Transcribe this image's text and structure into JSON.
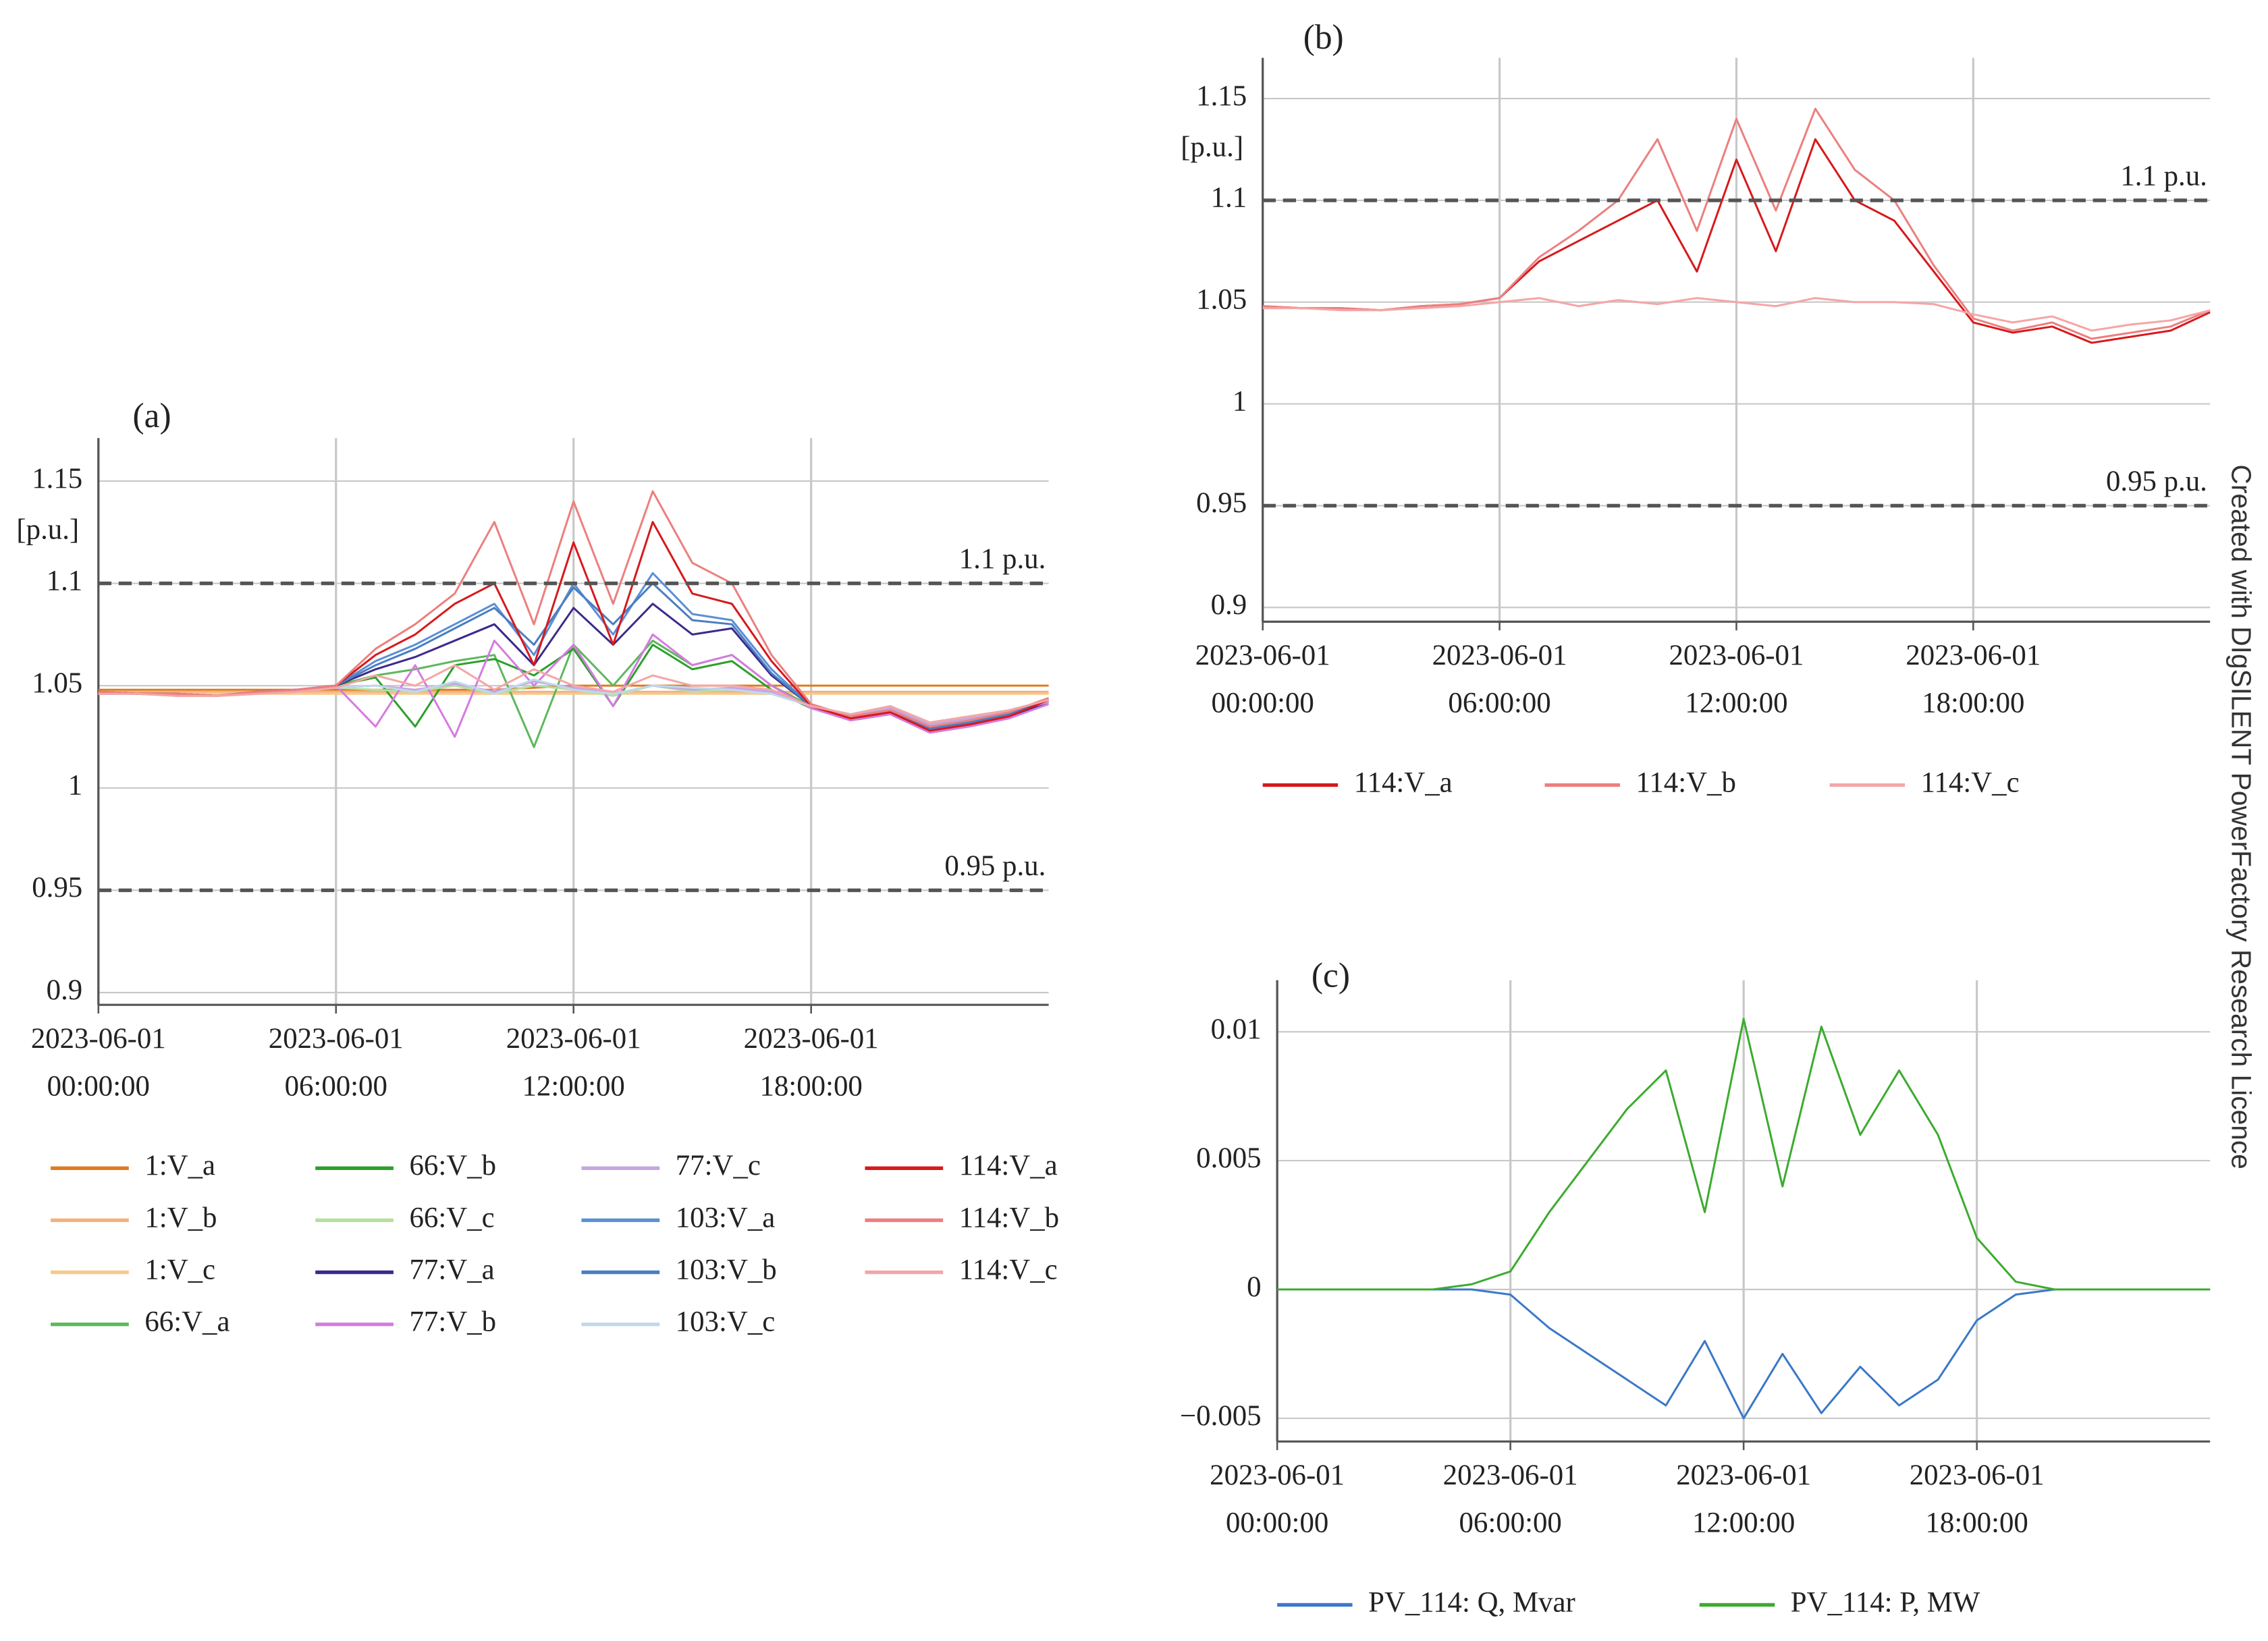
{
  "watermark": "Created with DIgSILENT PowerFactory Research Licence",
  "chart_data": [
    {
      "type": "line",
      "title": "(a)",
      "y_label": "[p.u.]",
      "x": [
        0,
        1,
        2,
        3,
        4,
        5,
        6,
        7,
        8,
        9,
        10,
        11,
        12,
        13,
        14,
        15,
        16,
        17,
        18,
        19,
        20,
        21,
        22,
        23,
        24
      ],
      "xlim": [
        0,
        24
      ],
      "xticks": [
        {
          "value": 0,
          "label": "2023-06-01 00:00:00"
        },
        {
          "value": 6,
          "label": "2023-06-01 06:00:00"
        },
        {
          "value": 12,
          "label": "2023-06-01 12:00:00"
        },
        {
          "value": 18,
          "label": "2023-06-01 18:00:00"
        }
      ],
      "ylim": [
        0.894,
        1.171
      ],
      "yticks": [
        0.9,
        0.95,
        1,
        1.05,
        1.1,
        1.15
      ],
      "grid": true,
      "hlines": [
        {
          "value": 1.1,
          "label": "1.1 p.u."
        },
        {
          "value": 0.95,
          "label": "0.95 p.u."
        }
      ],
      "series": [
        {
          "name": "1:V_a",
          "color": "#e07b1f",
          "values": [
            1.048,
            1.048,
            1.048,
            1.048,
            1.048,
            1.048,
            1.048,
            1.048,
            1.048,
            1.048,
            1.048,
            1.049,
            1.05,
            1.05,
            1.05,
            1.05,
            1.05,
            1.05,
            1.05,
            1.05,
            1.05,
            1.05,
            1.05,
            1.05,
            1.05
          ]
        },
        {
          "name": "1:V_b",
          "color": "#f5b07a",
          "values": [
            1.047,
            1.047,
            1.047,
            1.047,
            1.047,
            1.047,
            1.047,
            1.047,
            1.047,
            1.047,
            1.047,
            1.047,
            1.047,
            1.047,
            1.047,
            1.047,
            1.047,
            1.047,
            1.047,
            1.047,
            1.047,
            1.047,
            1.047,
            1.047,
            1.047
          ]
        },
        {
          "name": "1:V_c",
          "color": "#f8c98a",
          "values": [
            1.046,
            1.046,
            1.046,
            1.046,
            1.046,
            1.046,
            1.046,
            1.046,
            1.046,
            1.046,
            1.046,
            1.046,
            1.046,
            1.046,
            1.046,
            1.046,
            1.046,
            1.046,
            1.046,
            1.046,
            1.046,
            1.046,
            1.046,
            1.046,
            1.046
          ]
        },
        {
          "name": "66:V_a",
          "color": "#5cb85c",
          "values": [
            1.047,
            1.046,
            1.046,
            1.045,
            1.047,
            1.048,
            1.05,
            1.055,
            1.058,
            1.062,
            1.065,
            1.02,
            1.07,
            1.05,
            1.072,
            1.06,
            1.065,
            1.05,
            1.04,
            1.035,
            1.038,
            1.03,
            1.033,
            1.037,
            1.043
          ]
        },
        {
          "name": "66:V_b",
          "color": "#2ca02c",
          "values": [
            1.047,
            1.046,
            1.046,
            1.045,
            1.047,
            1.048,
            1.05,
            1.054,
            1.03,
            1.06,
            1.063,
            1.055,
            1.068,
            1.04,
            1.07,
            1.058,
            1.062,
            1.048,
            1.039,
            1.034,
            1.037,
            1.029,
            1.032,
            1.036,
            1.042
          ]
        },
        {
          "name": "66:V_c",
          "color": "#b5e0a0",
          "values": [
            1.046,
            1.046,
            1.045,
            1.045,
            1.046,
            1.047,
            1.049,
            1.048,
            1.047,
            1.05,
            1.046,
            1.05,
            1.048,
            1.045,
            1.05,
            1.047,
            1.048,
            1.046,
            1.04,
            1.036,
            1.04,
            1.032,
            1.035,
            1.038,
            1.043
          ]
        },
        {
          "name": "77:V_a",
          "color": "#3b2a8c",
          "values": [
            1.047,
            1.046,
            1.046,
            1.045,
            1.047,
            1.048,
            1.05,
            1.058,
            1.064,
            1.072,
            1.08,
            1.06,
            1.088,
            1.07,
            1.09,
            1.075,
            1.078,
            1.055,
            1.04,
            1.034,
            1.037,
            1.028,
            1.031,
            1.035,
            1.042
          ]
        },
        {
          "name": "77:V_b",
          "color": "#d57be0",
          "values": [
            1.047,
            1.046,
            1.046,
            1.045,
            1.047,
            1.048,
            1.05,
            1.03,
            1.06,
            1.025,
            1.072,
            1.05,
            1.07,
            1.04,
            1.075,
            1.06,
            1.065,
            1.05,
            1.039,
            1.033,
            1.036,
            1.027,
            1.03,
            1.034,
            1.041
          ]
        },
        {
          "name": "77:V_c",
          "color": "#c5a5e0",
          "values": [
            1.046,
            1.046,
            1.045,
            1.045,
            1.046,
            1.047,
            1.049,
            1.05,
            1.048,
            1.051,
            1.047,
            1.052,
            1.049,
            1.046,
            1.05,
            1.048,
            1.049,
            1.047,
            1.04,
            1.035,
            1.039,
            1.031,
            1.034,
            1.037,
            1.042
          ]
        },
        {
          "name": "103:V_a",
          "color": "#5b8fd6",
          "values": [
            1.047,
            1.046,
            1.046,
            1.045,
            1.047,
            1.048,
            1.05,
            1.062,
            1.07,
            1.08,
            1.09,
            1.065,
            1.1,
            1.075,
            1.105,
            1.085,
            1.082,
            1.058,
            1.04,
            1.034,
            1.037,
            1.029,
            1.032,
            1.036,
            1.043
          ]
        },
        {
          "name": "103:V_b",
          "color": "#4a7ec0",
          "values": [
            1.047,
            1.046,
            1.046,
            1.045,
            1.047,
            1.048,
            1.05,
            1.06,
            1.068,
            1.078,
            1.088,
            1.07,
            1.098,
            1.08,
            1.1,
            1.082,
            1.08,
            1.056,
            1.04,
            1.034,
            1.037,
            1.029,
            1.032,
            1.036,
            1.043
          ]
        },
        {
          "name": "103:V_c",
          "color": "#c0d8ee",
          "values": [
            1.046,
            1.046,
            1.045,
            1.045,
            1.046,
            1.047,
            1.049,
            1.05,
            1.047,
            1.052,
            1.046,
            1.053,
            1.048,
            1.046,
            1.05,
            1.049,
            1.048,
            1.046,
            1.04,
            1.036,
            1.04,
            1.032,
            1.035,
            1.038,
            1.043
          ]
        },
        {
          "name": "114:V_a",
          "color": "#d7191c",
          "values": [
            1.047,
            1.046,
            1.046,
            1.045,
            1.047,
            1.048,
            1.05,
            1.065,
            1.075,
            1.09,
            1.1,
            1.06,
            1.12,
            1.07,
            1.13,
            1.095,
            1.09,
            1.062,
            1.04,
            1.034,
            1.037,
            1.028,
            1.031,
            1.035,
            1.043
          ]
        },
        {
          "name": "114:V_b",
          "color": "#ec7f7f",
          "values": [
            1.047,
            1.046,
            1.046,
            1.045,
            1.047,
            1.048,
            1.05,
            1.068,
            1.08,
            1.095,
            1.13,
            1.08,
            1.14,
            1.09,
            1.145,
            1.11,
            1.1,
            1.065,
            1.041,
            1.035,
            1.038,
            1.03,
            1.033,
            1.037,
            1.044
          ]
        },
        {
          "name": "114:V_c",
          "color": "#f4a6a6",
          "values": [
            1.046,
            1.046,
            1.045,
            1.045,
            1.046,
            1.047,
            1.049,
            1.055,
            1.05,
            1.06,
            1.048,
            1.058,
            1.05,
            1.047,
            1.055,
            1.05,
            1.05,
            1.048,
            1.04,
            1.036,
            1.04,
            1.032,
            1.035,
            1.038,
            1.043
          ]
        }
      ]
    },
    {
      "type": "line",
      "title": "(b)",
      "y_label": "[p.u.]",
      "x": [
        0,
        1,
        2,
        3,
        4,
        5,
        6,
        7,
        8,
        9,
        10,
        11,
        12,
        13,
        14,
        15,
        16,
        17,
        18,
        19,
        20,
        21,
        22,
        23,
        24
      ],
      "xlim": [
        0,
        24
      ],
      "xticks": [
        {
          "value": 0,
          "label": "2023-06-01 00:00:00"
        },
        {
          "value": 6,
          "label": "2023-06-01 06:00:00"
        },
        {
          "value": 12,
          "label": "2023-06-01 12:00:00"
        },
        {
          "value": 18,
          "label": "2023-06-01 18:00:00"
        }
      ],
      "ylim": [
        0.893,
        1.17
      ],
      "yticks": [
        0.9,
        0.95,
        1,
        1.05,
        1.1,
        1.15
      ],
      "grid": true,
      "hlines": [
        {
          "value": 1.1,
          "label": "1.1 p.u."
        },
        {
          "value": 0.95,
          "label": "0.95 p.u."
        }
      ],
      "series": [
        {
          "name": "114:V_a",
          "color": "#d7191c",
          "values": [
            1.048,
            1.047,
            1.047,
            1.046,
            1.048,
            1.049,
            1.052,
            1.07,
            1.08,
            1.09,
            1.1,
            1.065,
            1.12,
            1.075,
            1.13,
            1.1,
            1.09,
            1.065,
            1.04,
            1.035,
            1.038,
            1.03,
            1.033,
            1.036,
            1.045
          ]
        },
        {
          "name": "114:V_b",
          "color": "#ec7f7f",
          "values": [
            1.048,
            1.047,
            1.047,
            1.046,
            1.048,
            1.049,
            1.052,
            1.072,
            1.085,
            1.1,
            1.13,
            1.085,
            1.14,
            1.095,
            1.145,
            1.115,
            1.1,
            1.068,
            1.042,
            1.036,
            1.04,
            1.032,
            1.035,
            1.038,
            1.046
          ]
        },
        {
          "name": "114:V_c",
          "color": "#f4a6a6",
          "values": [
            1.047,
            1.047,
            1.046,
            1.046,
            1.047,
            1.048,
            1.05,
            1.052,
            1.048,
            1.051,
            1.049,
            1.052,
            1.05,
            1.048,
            1.052,
            1.05,
            1.05,
            1.049,
            1.044,
            1.04,
            1.043,
            1.036,
            1.039,
            1.041,
            1.046
          ]
        }
      ]
    },
    {
      "type": "line",
      "title": "(c)",
      "x": [
        0,
        1,
        2,
        3,
        4,
        5,
        6,
        7,
        8,
        9,
        10,
        11,
        12,
        13,
        14,
        15,
        16,
        17,
        18,
        19,
        20,
        21,
        22,
        23,
        24
      ],
      "xlim": [
        0,
        24
      ],
      "xticks": [
        {
          "value": 0,
          "label": "2023-06-01 00:00:00"
        },
        {
          "value": 6,
          "label": "2023-06-01 06:00:00"
        },
        {
          "value": 12,
          "label": "2023-06-01 12:00:00"
        },
        {
          "value": 18,
          "label": "2023-06-01 18:00:00"
        }
      ],
      "ylim": [
        -0.0059,
        0.012
      ],
      "yticks": [
        {
          "value": -0.005,
          "label": "−0.005"
        },
        0,
        0.005,
        0.01
      ],
      "grid": true,
      "series": [
        {
          "name": "PV_114: Q, Mvar",
          "color": "#3a78c8",
          "values": [
            0,
            0,
            0,
            0,
            0,
            0,
            -0.0002,
            -0.0015,
            -0.0025,
            -0.0035,
            -0.0045,
            -0.002,
            -0.005,
            -0.0025,
            -0.0048,
            -0.003,
            -0.0045,
            -0.0035,
            -0.0012,
            -0.0002,
            0,
            0,
            0,
            0,
            0
          ]
        },
        {
          "name": "PV_114: P, MW",
          "color": "#3cab2f",
          "values": [
            0,
            0,
            0,
            0,
            0,
            0.0002,
            0.0007,
            0.003,
            0.005,
            0.007,
            0.0085,
            0.003,
            0.0105,
            0.004,
            0.0102,
            0.006,
            0.0085,
            0.006,
            0.002,
            0.0003,
            0,
            0,
            0,
            0,
            0
          ]
        }
      ]
    }
  ]
}
